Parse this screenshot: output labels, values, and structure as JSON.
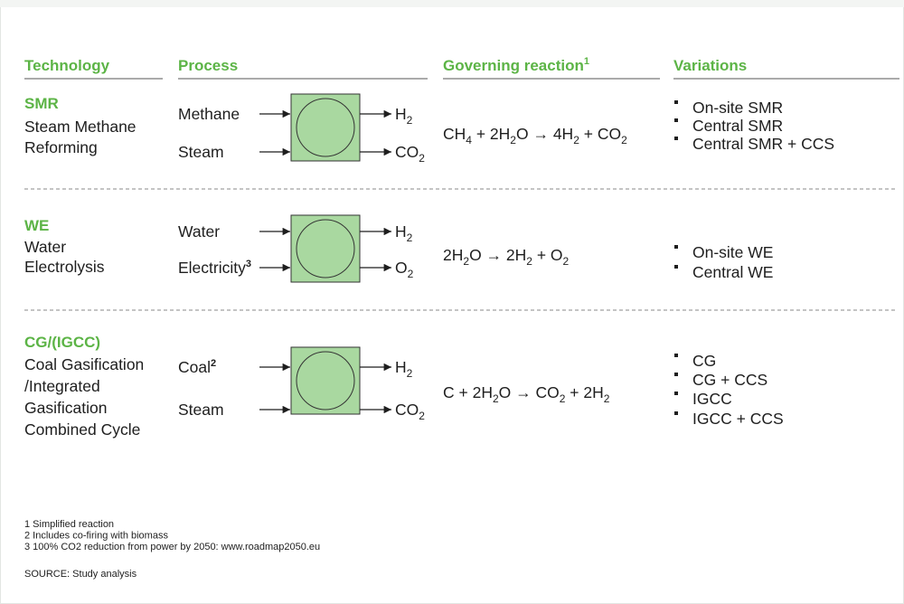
{
  "header": {
    "technology": "Technology",
    "process": "Process",
    "reaction": "Governing reaction",
    "reaction_note": "1",
    "variations": "Variations"
  },
  "rows": [
    {
      "code": "SMR",
      "name": [
        "Steam Methane",
        "Reforming"
      ],
      "inputs": [
        [
          "Methane"
        ],
        [
          "Steam"
        ]
      ],
      "outputs": [
        [
          "H",
          "2"
        ],
        [
          "CO",
          "2"
        ]
      ],
      "reaction": [
        "CH",
        "4",
        " + 2H",
        "2",
        "O → 4H",
        "2",
        " + CO",
        "2"
      ],
      "variations": [
        "On-site SMR",
        "Central SMR",
        "Central SMR + CCS"
      ]
    },
    {
      "code": "WE",
      "name": [
        "Water",
        "Electrolysis"
      ],
      "inputs": [
        [
          "Water"
        ],
        [
          "Electricity",
          "3"
        ]
      ],
      "outputs": [
        [
          "H",
          "2"
        ],
        [
          "O",
          "2"
        ]
      ],
      "reaction": [
        "2H",
        "2",
        "O → 2H",
        "2",
        " + O",
        "2"
      ],
      "variations": [
        "On-site WE",
        "Central WE"
      ]
    },
    {
      "code": "CG/(IGCC)",
      "name": [
        "Coal Gasification",
        "/Integrated",
        "Gasification",
        "Combined Cycle"
      ],
      "inputs": [
        [
          "Coal",
          "2"
        ],
        [
          "Steam"
        ]
      ],
      "outputs": [
        [
          "H",
          "2"
        ],
        [
          "CO",
          "2"
        ]
      ],
      "reaction": [
        "C + 2H",
        "2",
        "O → CO",
        "2",
        " + 2H",
        "2"
      ],
      "variations": [
        "CG",
        "CG + CCS",
        "IGCC",
        "IGCC + CCS"
      ]
    }
  ],
  "footnotes": [
    "1 Simplified reaction",
    "2 Includes co-firing with biomass",
    "3 100% CO2 reduction from power by 2050: www.roadmap2050.eu"
  ],
  "source": "SOURCE: Study analysis"
}
